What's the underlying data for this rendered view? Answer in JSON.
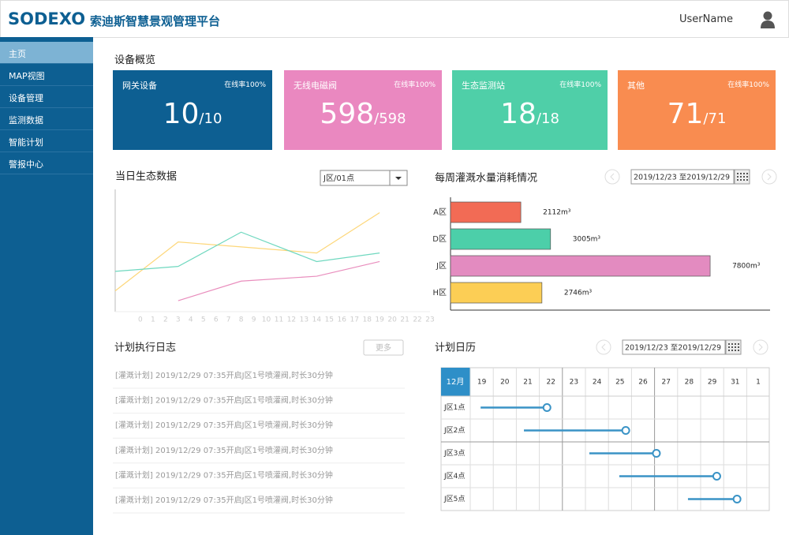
{
  "header": {
    "logo": "SODEXO",
    "title": "索迪斯智慧景观管理平台",
    "user": "UserName"
  },
  "sidebar": [
    "主页",
    "MAP视图",
    "设备管理",
    "监测数据",
    "智能计划",
    "警报中心"
  ],
  "overview": {
    "title": "设备概览",
    "cards": [
      {
        "name": "网关设备",
        "rate": "在线率100%",
        "online": 10,
        "total": "/10",
        "color": "#0d5f92"
      },
      {
        "name": "无线电磁阀",
        "rate": "在线率100%",
        "online": 598,
        "total": "/598",
        "color": "#ea88c0"
      },
      {
        "name": "生态监测站",
        "rate": "在线率100%",
        "online": 18,
        "total": "/18",
        "color": "#4fcfa8"
      },
      {
        "name": "其他",
        "rate": "在线率100%",
        "online": 71,
        "total": "/71",
        "color": "#f98c50"
      }
    ]
  },
  "chart_data": [
    {
      "type": "line",
      "title": "当日生态数据",
      "selector": "J区/01点",
      "x": [
        -2,
        3,
        8,
        14,
        19
      ],
      "xlim": [
        -2,
        23
      ],
      "xticks": [
        0,
        1,
        2,
        3,
        4,
        5,
        6,
        7,
        8,
        9,
        10,
        11,
        12,
        13,
        14,
        15,
        16,
        17,
        18,
        19,
        20,
        21,
        22,
        23
      ],
      "ylim": [
        0,
        100
      ],
      "series": [
        {
          "color": "#fdd77a",
          "values": [
            17,
            57,
            53,
            48,
            81
          ]
        },
        {
          "color": "#6fd8bf",
          "values": [
            33,
            37,
            65,
            41,
            48
          ]
        },
        {
          "color": "#e98dbd",
          "values": [
            null,
            9,
            25,
            29,
            41
          ]
        }
      ]
    },
    {
      "type": "bar",
      "title": "每周灌溉水量消耗情况",
      "date_range": "2019/12/23 至2019/12/29",
      "categories": [
        "A区",
        "D区",
        "J区",
        "H区"
      ],
      "values": [
        2112,
        3005,
        7800,
        2746
      ],
      "value_labels": [
        "2112m³",
        "3005m³",
        "7800m³",
        "2746m³"
      ],
      "colors": [
        "#f26b55",
        "#4ccfa9",
        "#e38bc0",
        "#fcce55"
      ],
      "xlim": [
        0,
        9600
      ]
    }
  ],
  "log": {
    "title": "计划执行日志",
    "more": "更多",
    "entries": [
      "[灌溉计划] 2019/12/29 07:35开启J区1号喷灌阀,时长30分钟",
      "[灌溉计划] 2019/12/29 07:35开启J区1号喷灌阀,时长30分钟",
      "[灌溉计划] 2019/12/29 07:35开启J区1号喷灌阀,时长30分钟",
      "[灌溉计划] 2019/12/29 07:35开启J区1号喷灌阀,时长30分钟",
      "[灌溉计划] 2019/12/29 07:35开启J区1号喷灌阀,时长30分钟",
      "[灌溉计划] 2019/12/29 07:35开启J区1号喷灌阀,时长30分钟"
    ]
  },
  "calendar": {
    "title": "计划日历",
    "date_range": "2019/12/23 至2019/12/29",
    "month": "12月",
    "days": [
      19,
      20,
      21,
      22,
      23,
      24,
      25,
      26,
      27,
      28,
      29,
      31,
      1
    ],
    "color": "#3a93c6",
    "rows": [
      {
        "label": "J区1点",
        "start": 0.45,
        "end": 3.33
      },
      {
        "label": "J区2点",
        "start": 2.33,
        "end": 6.75
      },
      {
        "label": "J区3点",
        "start": 5.17,
        "end": 8.08
      },
      {
        "label": "J区4点",
        "start": 6.47,
        "end": 10.7
      },
      {
        "label": "J区5点",
        "start": 9.45,
        "end": 11.58
      }
    ]
  }
}
